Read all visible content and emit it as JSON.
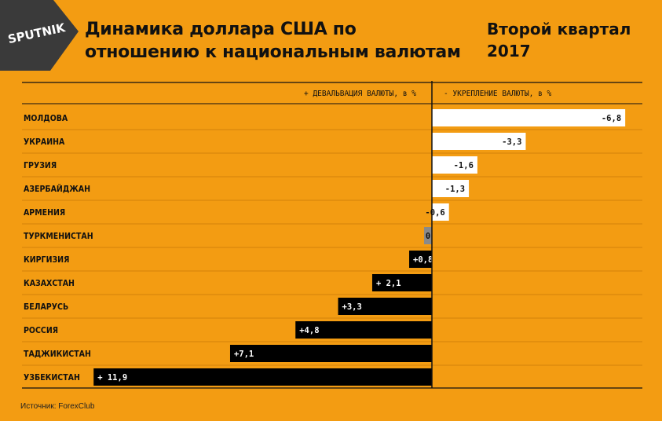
{
  "brand": {
    "logo_text": "SPUTNIK"
  },
  "header": {
    "title": "Динамика доллара США по отношению к национальным валютам",
    "subtitle": "Второй квартал 2017"
  },
  "colors": {
    "background": "#f39c12",
    "positive": "#000000",
    "negative": "#ffffff",
    "zero": "#8a8a8a"
  },
  "source": "Источник: ForexClub",
  "chart_data": {
    "type": "bar",
    "orientation": "horizontal",
    "left_header": "+ ДЕВАЛЬВАЦИЯ ВАЛЮТЫ, в %",
    "right_header": "- УКРЕПЛЕНИЕ ВАЛЮТЫ, в %",
    "categories": [
      "МОЛДОВА",
      "УКРАИНА",
      "ГРУЗИЯ",
      "АЗЕРБАЙДЖАН",
      "АРМЕНИЯ",
      "ТУРКМЕНИСТАН",
      "КИРГИЗИЯ",
      "КАЗАХСТАН",
      "БЕЛАРУСЬ",
      "РОССИЯ",
      "ТАДЖИКИСТАН",
      "УЗБЕКИСТАН"
    ],
    "values": [
      -6.8,
      -3.3,
      -1.6,
      -1.3,
      -0.6,
      0,
      0.8,
      2.1,
      3.3,
      4.8,
      7.1,
      11.9
    ],
    "labels": [
      "-6,8",
      "-3,3",
      "-1,6",
      "-1,3",
      "-0,6",
      "0",
      "+0,8",
      "+ 2,1",
      "+3,3",
      "+4,8",
      "+7,1",
      "+ 11,9"
    ]
  }
}
